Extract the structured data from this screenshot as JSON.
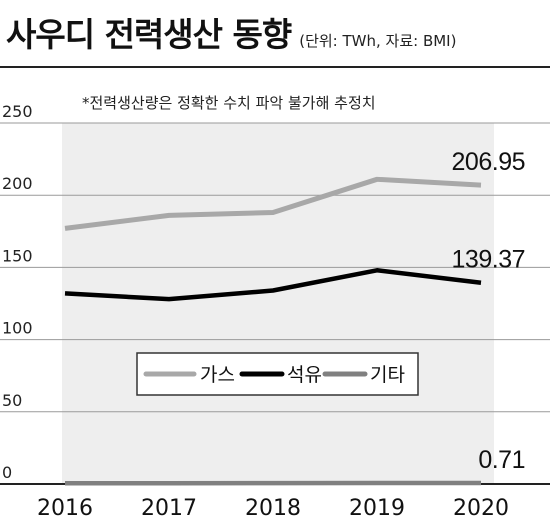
{
  "header": {
    "title": "사우디 전력생산 동향",
    "subtitle": "(단위: TWh, 자료: BMI)"
  },
  "chart_data": {
    "type": "line",
    "x": [
      "2016",
      "2017",
      "2018",
      "2019",
      "2020"
    ],
    "ylim": [
      0,
      250
    ],
    "yticks": [
      "0",
      "50",
      "100",
      "150",
      "200",
      "250"
    ],
    "note": "*전력생산량은 정확한 수치 파악 불가해 추정치",
    "grid": true,
    "legend_position": "center",
    "series": [
      {
        "name": "가스",
        "values": [
          177,
          186,
          188,
          211,
          206.95
        ],
        "color": "#a8a8a8",
        "end_label": "206.95"
      },
      {
        "name": "석유",
        "values": [
          132,
          128,
          134,
          148,
          139.37
        ],
        "color": "#000000",
        "end_label": "139.37"
      },
      {
        "name": "기타",
        "values": [
          0.5,
          0.5,
          0.6,
          0.7,
          0.71
        ],
        "color": "#808080",
        "end_label": "0.71"
      }
    ]
  }
}
